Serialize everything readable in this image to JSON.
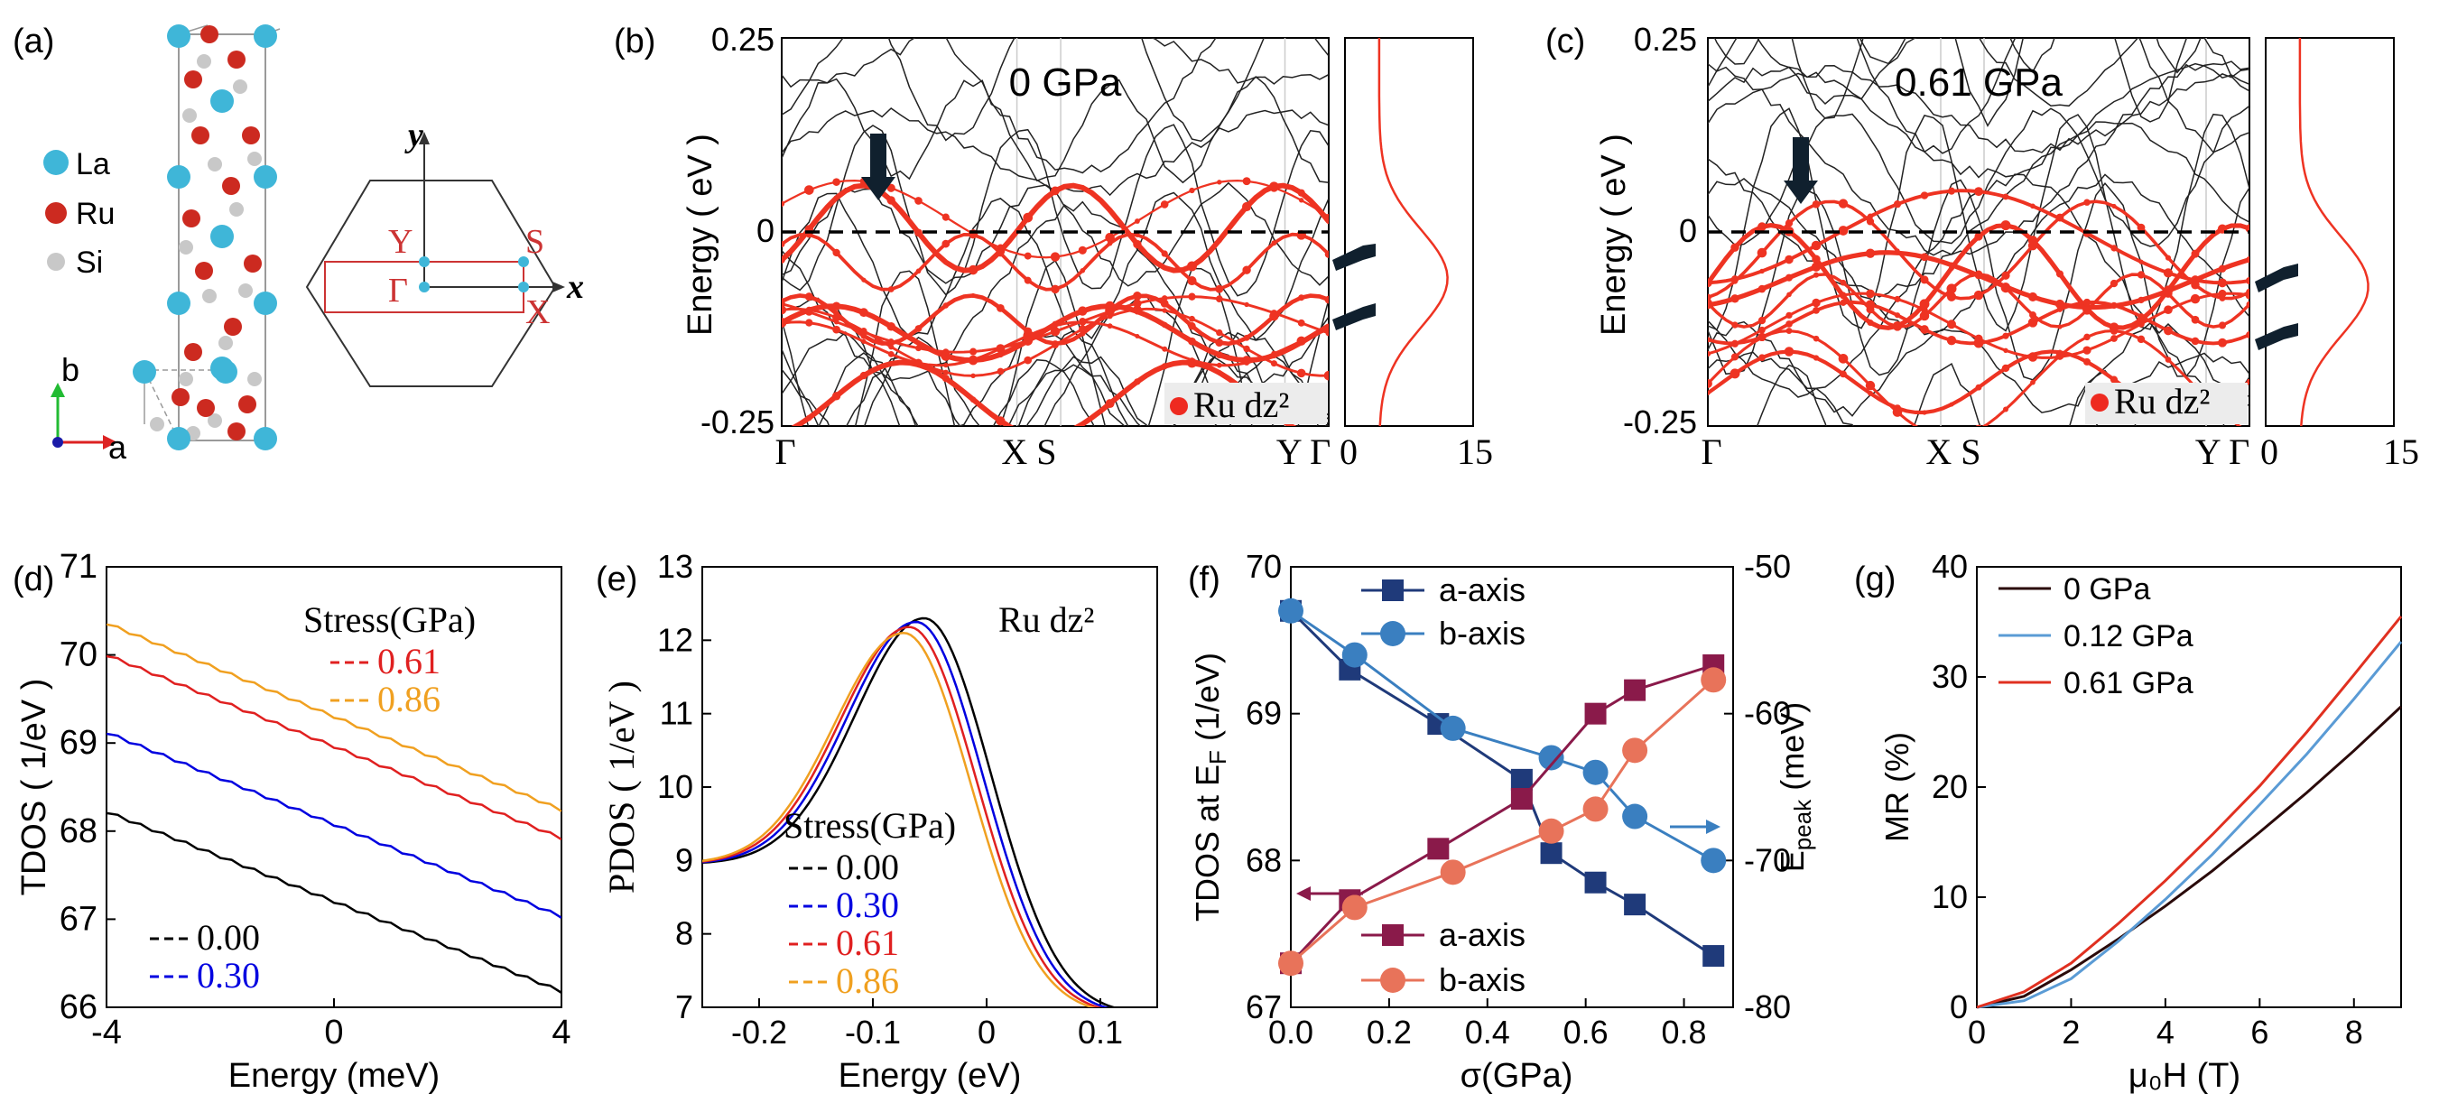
{
  "panel_labels": [
    "(a)",
    "(b)",
    "(c)",
    "(d)",
    "(e)",
    "(f)",
    "(g)"
  ],
  "structure": {
    "legend": [
      {
        "label": "La",
        "color": "#3fb6d8"
      },
      {
        "label": "Ru",
        "color": "#cc2a20"
      },
      {
        "label": "Si",
        "color": "#c8c8c8"
      }
    ],
    "axes": {
      "b": "b",
      "a": "a"
    },
    "bz": {
      "y_axis": "y",
      "x_axis": "x",
      "Y": "Y",
      "S": "S",
      "Gamma": "Γ",
      "X": "X"
    }
  },
  "chart_data": [
    {
      "id": "b",
      "type": "line",
      "title": "0 GPa",
      "ylabel": "Energy ( eV )",
      "ylim": [
        -0.25,
        0.25
      ],
      "yticks": [
        "0.25",
        "0",
        "-0.25"
      ],
      "kpath": [
        "Γ",
        "X S",
        "Y Γ"
      ],
      "legend": "Ru dz²",
      "dos_xticks": [
        "0",
        "15"
      ],
      "note": "band structure with Ru dz2 weighted bands; Fermi level dashed"
    },
    {
      "id": "c",
      "type": "line",
      "title": "0.61 GPa",
      "ylabel": "Energy ( eV )",
      "ylim": [
        -0.25,
        0.25
      ],
      "yticks": [
        "0.25",
        "0",
        "-0.25"
      ],
      "kpath": [
        "Γ",
        "X S",
        "Y Γ"
      ],
      "legend": "Ru dz²",
      "dos_xticks": [
        "0",
        "15"
      ]
    },
    {
      "id": "d",
      "type": "line",
      "xlabel": "Energy (meV)",
      "ylabel": "TDOS ( 1/eV )",
      "xlim": [
        -4,
        4
      ],
      "ylim": [
        66,
        71
      ],
      "xticks": [
        "-4",
        "0",
        "4"
      ],
      "yticks": [
        "66",
        "67",
        "68",
        "69",
        "70",
        "71"
      ],
      "legend_title": "Stress(GPa)",
      "series": [
        {
          "name": "0.00",
          "color": "#000000",
          "x": [
            -4,
            4
          ],
          "values": [
            68.22,
            66.18
          ]
        },
        {
          "name": "0.30",
          "color": "#0000e0",
          "x": [
            -4,
            4
          ],
          "values": [
            69.12,
            67.03
          ]
        },
        {
          "name": "0.61",
          "color": "#e02020",
          "x": [
            -4,
            4
          ],
          "values": [
            70.0,
            67.92
          ]
        },
        {
          "name": "0.86",
          "color": "#f0a020",
          "x": [
            -4,
            4
          ],
          "values": [
            70.36,
            68.24
          ]
        }
      ]
    },
    {
      "id": "e",
      "type": "line",
      "xlabel": "Energy (eV)",
      "ylabel": "PDOS ( 1/eV )",
      "xlim": [
        -0.25,
        0.15
      ],
      "ylim": [
        7,
        13
      ],
      "xticks": [
        "-0.2",
        "-0.1",
        "0",
        "0.1"
      ],
      "yticks": [
        "7",
        "8",
        "9",
        "10",
        "11",
        "12",
        "13"
      ],
      "annotation": "Ru dz²",
      "legend_title": "Stress(GPa)",
      "series": [
        {
          "name": "0.00",
          "color": "#000000",
          "peak_x": -0.055,
          "peak_y": 12.3
        },
        {
          "name": "0.30",
          "color": "#0000e0",
          "peak_x": -0.062,
          "peak_y": 12.25
        },
        {
          "name": "0.61",
          "color": "#e02020",
          "peak_x": -0.068,
          "peak_y": 12.18
        },
        {
          "name": "0.86",
          "color": "#f0a020",
          "peak_x": -0.073,
          "peak_y": 12.1
        }
      ]
    },
    {
      "id": "f",
      "type": "line",
      "xlabel": "σ(GPa)",
      "ylabel": "TDOS at E",
      "ylabel_sub": "F",
      "ylabel_suffix": " (1/eV)",
      "y2label": "E",
      "y2label_sub": "peak",
      "y2label_suffix": " (meV)",
      "xlim": [
        0,
        0.9
      ],
      "ylim": [
        67,
        70
      ],
      "y2lim": [
        -80,
        -50
      ],
      "xticks": [
        "0.0",
        "0.2",
        "0.4",
        "0.6",
        "0.8"
      ],
      "yticks": [
        "67",
        "68",
        "69",
        "70"
      ],
      "y2ticks": [
        "-80",
        "-70",
        "-60",
        "-50"
      ],
      "x": [
        0.0,
        0.12,
        0.3,
        0.48,
        0.53,
        0.62,
        0.7,
        0.86
      ],
      "series": [
        {
          "name": "a-axis",
          "axis": "left",
          "group": "top",
          "color": "#1f3a7a",
          "marker": "square",
          "x": [
            0.0,
            0.12,
            0.3,
            0.47,
            0.53,
            0.62,
            0.7,
            0.86
          ],
          "values": [
            69.7,
            69.3,
            68.93,
            68.55,
            68.05,
            67.85,
            67.7,
            67.35
          ]
        },
        {
          "name": "b-axis",
          "axis": "left",
          "group": "top",
          "color": "#3a7fc0",
          "marker": "circle",
          "x": [
            0.0,
            0.13,
            0.33,
            0.53,
            0.62,
            0.7,
            0.86
          ],
          "values": [
            69.7,
            69.4,
            68.9,
            68.7,
            68.6,
            68.3,
            68.0
          ]
        },
        {
          "name": "a-axis",
          "axis": "right",
          "group": "bottom",
          "color": "#8a1a4a",
          "marker": "square",
          "x": [
            0.0,
            0.12,
            0.3,
            0.47,
            0.62,
            0.7,
            0.86
          ],
          "values": [
            -77.0,
            -72.7,
            -69.2,
            -65.8,
            -60.0,
            -58.4,
            -56.7
          ]
        },
        {
          "name": "b-axis",
          "axis": "right",
          "group": "bottom",
          "color": "#e8735a",
          "marker": "circle",
          "x": [
            0.0,
            0.13,
            0.33,
            0.53,
            0.62,
            0.7,
            0.86
          ],
          "values": [
            -77.0,
            -73.2,
            -70.8,
            -68.0,
            -66.5,
            -62.5,
            -57.7
          ]
        }
      ]
    },
    {
      "id": "g",
      "type": "line",
      "xlabel": "μ₀H (T)",
      "ylabel": "MR (%)",
      "xlim": [
        0,
        9
      ],
      "ylim": [
        0,
        40
      ],
      "xticks": [
        "0",
        "2",
        "4",
        "6",
        "8"
      ],
      "yticks": [
        "0",
        "10",
        "20",
        "30",
        "40"
      ],
      "series": [
        {
          "name": "0 GPa",
          "color": "#2a0a0a",
          "x": [
            0,
            1,
            2,
            3,
            4,
            5,
            6,
            7,
            8,
            9
          ],
          "values": [
            0,
            1.0,
            3.4,
            6.2,
            9.2,
            12.4,
            15.9,
            19.5,
            23.3,
            27.3
          ]
        },
        {
          "name": "0.12 GPa",
          "color": "#5a9bd5",
          "x": [
            0,
            1,
            2,
            3,
            4,
            5,
            6,
            7,
            8,
            9
          ],
          "values": [
            0,
            0.6,
            2.6,
            6.0,
            9.8,
            13.9,
            18.4,
            23.0,
            28.0,
            33.2
          ]
        },
        {
          "name": "0.61 GPa",
          "color": "#e03020",
          "x": [
            0,
            1,
            2,
            3,
            4,
            5,
            6,
            7,
            8,
            9
          ],
          "values": [
            0,
            1.4,
            4.0,
            7.6,
            11.5,
            15.7,
            20.1,
            25.0,
            30.2,
            35.5
          ]
        }
      ]
    }
  ]
}
